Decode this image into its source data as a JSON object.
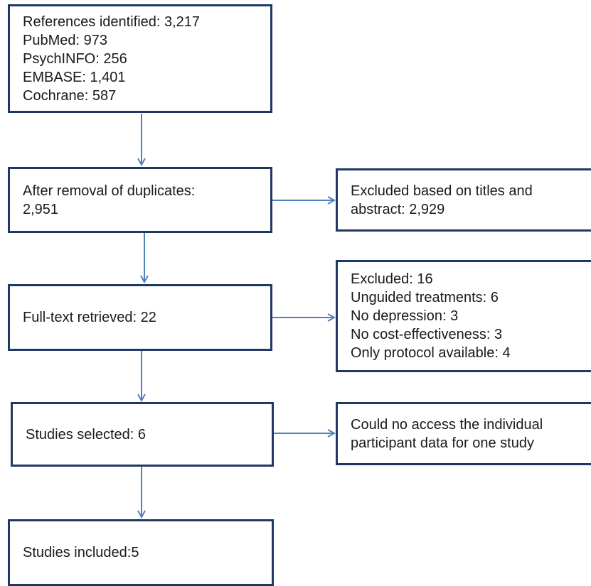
{
  "boxes": {
    "references": {
      "lines": [
        "References identified: 3,217",
        "PubMed: 973",
        "PsychINFO: 256",
        "EMBASE: 1,401",
        "Cochrane: 587"
      ]
    },
    "after_duplicates": {
      "lines": [
        "After removal of duplicates:",
        "2,951"
      ]
    },
    "excluded_titles": {
      "lines": [
        "Excluded based on titles and",
        "abstract: 2,929"
      ]
    },
    "fulltext": {
      "lines": [
        "Full-text retrieved: 22"
      ]
    },
    "excluded_fulltext": {
      "lines": [
        "Excluded: 16",
        "Unguided treatments: 6",
        "No depression: 3",
        "No cost-effectiveness: 3",
        "Only protocol available: 4"
      ]
    },
    "selected": {
      "lines": [
        "Studies selected: 6"
      ]
    },
    "could_not_access": {
      "lines": [
        "Could no access the individual",
        "participant data for one study"
      ]
    },
    "included": {
      "lines": [
        "Studies included:5"
      ]
    }
  },
  "colors": {
    "border": "#1f3864",
    "arrow": "#4f81bd"
  }
}
